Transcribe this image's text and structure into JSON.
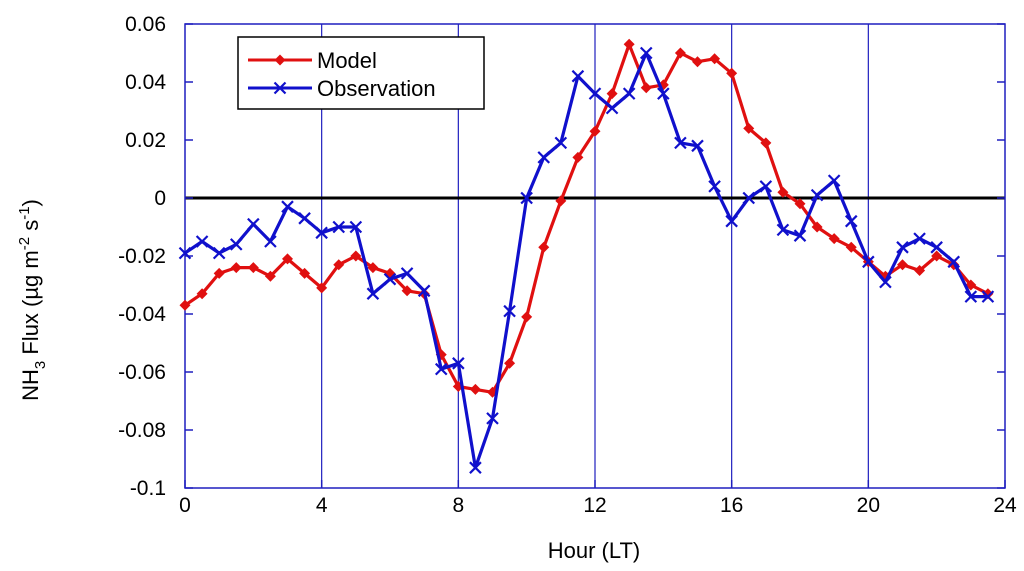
{
  "chart_data": {
    "type": "line",
    "title": "",
    "xlabel": "Hour (LT)",
    "ylabel": {
      "parts": [
        "NH",
        "3",
        " Flux (",
        "µ",
        "g m",
        "-2",
        " s",
        "-1",
        ")"
      ]
    },
    "xlim": [
      0,
      24
    ],
    "ylim": [
      -0.1,
      0.06
    ],
    "xticks": [
      0,
      4,
      8,
      12,
      16,
      20,
      24
    ],
    "yticks": [
      -0.1,
      -0.08,
      -0.06,
      -0.04,
      -0.02,
      0,
      0.02,
      0.04,
      0.06
    ],
    "xtick_labels": [
      "0",
      "4",
      "8",
      "12",
      "16",
      "20",
      "24"
    ],
    "ytick_labels": [
      "-0.1",
      "-0.08",
      "-0.06",
      "-0.04",
      "-0.02",
      "0",
      "0.02",
      "0.04",
      "0.06"
    ],
    "grid": "vertical",
    "zero_line": true,
    "legend_position": "top-left",
    "colors": {
      "grid": "#1f1fbf",
      "zero": "#000000"
    },
    "series": [
      {
        "name": "Model",
        "color": "#e01010",
        "marker": "diamond",
        "x": [
          0,
          0.5,
          1,
          1.5,
          2,
          2.5,
          3,
          3.5,
          4,
          4.5,
          5,
          5.5,
          6,
          6.5,
          7,
          7.5,
          8,
          8.5,
          9,
          9.5,
          10,
          10.5,
          11,
          11.5,
          12,
          12.5,
          13,
          13.5,
          14,
          14.5,
          15,
          15.5,
          16,
          16.5,
          17,
          17.5,
          18,
          18.5,
          19,
          19.5,
          20,
          20.5,
          21,
          21.5,
          22,
          22.5,
          23,
          23.5
        ],
        "y": [
          -0.037,
          -0.033,
          -0.026,
          -0.024,
          -0.024,
          -0.027,
          -0.021,
          -0.026,
          -0.031,
          -0.023,
          -0.02,
          -0.024,
          -0.026,
          -0.032,
          -0.033,
          -0.054,
          -0.065,
          -0.066,
          -0.067,
          -0.057,
          -0.041,
          -0.017,
          -0.001,
          0.014,
          0.023,
          0.036,
          0.053,
          0.038,
          0.039,
          0.05,
          0.047,
          0.048,
          0.043,
          0.024,
          0.019,
          0.002,
          -0.002,
          -0.01,
          -0.014,
          -0.017,
          -0.022,
          -0.027,
          -0.023,
          -0.025,
          -0.02,
          -0.023,
          -0.03,
          -0.033
        ]
      },
      {
        "name": "Observation",
        "color": "#1010cc",
        "marker": "x",
        "x": [
          0,
          0.5,
          1,
          1.5,
          2,
          2.5,
          3,
          3.5,
          4,
          4.5,
          5,
          5.5,
          6,
          6.5,
          7,
          7.5,
          8,
          8.5,
          9,
          9.5,
          10,
          10.5,
          11,
          11.5,
          12,
          12.5,
          13,
          13.5,
          14,
          14.5,
          15,
          15.5,
          16,
          16.5,
          17,
          17.5,
          18,
          18.5,
          19,
          19.5,
          20,
          20.5,
          21,
          21.5,
          22,
          22.5,
          23,
          23.5
        ],
        "y": [
          -0.019,
          -0.015,
          -0.019,
          -0.016,
          -0.009,
          -0.015,
          -0.003,
          -0.007,
          -0.012,
          -0.01,
          -0.01,
          -0.033,
          -0.028,
          -0.026,
          -0.032,
          -0.059,
          -0.057,
          -0.093,
          -0.076,
          -0.039,
          0.0,
          0.014,
          0.019,
          0.042,
          0.036,
          0.031,
          0.036,
          0.05,
          0.036,
          0.019,
          0.018,
          0.004,
          -0.008,
          0.0,
          0.004,
          -0.011,
          -0.013,
          0.001,
          0.006,
          -0.008,
          -0.022,
          -0.029,
          -0.017,
          -0.014,
          -0.017,
          -0.022,
          -0.034,
          -0.034
        ]
      }
    ]
  }
}
